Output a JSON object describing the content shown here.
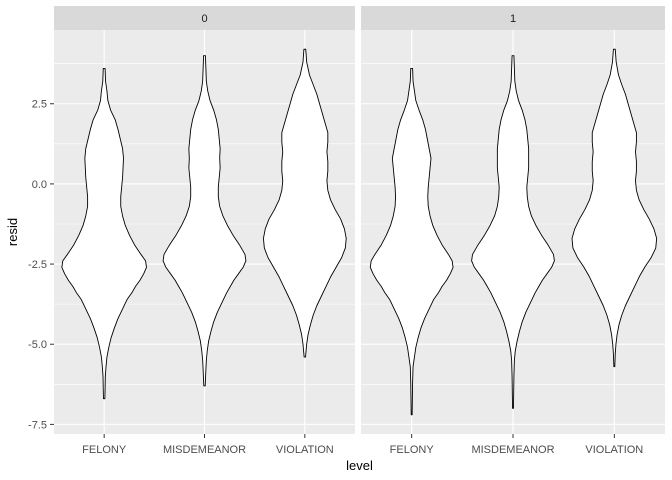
{
  "chart_data": {
    "type": "violin",
    "xlabel": "level",
    "ylabel": "resid",
    "facet_labels": [
      "0",
      "1"
    ],
    "categories": [
      "FELONY",
      "MISDEMEANOR",
      "VIOLATION"
    ],
    "y_ticks": [
      2.5,
      0.0,
      -2.5,
      -5.0,
      -7.5
    ],
    "y_tick_labels": [
      "2.5",
      "0.0",
      "-2.5",
      "-5.0",
      "-7.5"
    ],
    "ylim": [
      -7.8,
      4.8
    ],
    "grid": true,
    "colors": {
      "panel": "#ebebeb",
      "strip": "#d9d9d9",
      "grid": "#ffffff",
      "violin_fill": "#ffffff",
      "violin_line": "#000000"
    },
    "panels": [
      {
        "facet": "0",
        "violins": [
          {
            "category": "FELONY",
            "min": -6.7,
            "max": 3.6,
            "profile": [
              [
                3.6,
                0.02
              ],
              [
                3.2,
                0.03
              ],
              [
                2.9,
                0.06
              ],
              [
                2.6,
                0.08
              ],
              [
                2.3,
                0.14
              ],
              [
                2.0,
                0.24
              ],
              [
                1.7,
                0.3
              ],
              [
                1.4,
                0.35
              ],
              [
                1.1,
                0.4
              ],
              [
                0.8,
                0.42
              ],
              [
                0.5,
                0.41
              ],
              [
                0.2,
                0.4
              ],
              [
                -0.1,
                0.38
              ],
              [
                -0.4,
                0.36
              ],
              [
                -0.7,
                0.36
              ],
              [
                -1.0,
                0.4
              ],
              [
                -1.3,
                0.46
              ],
              [
                -1.6,
                0.55
              ],
              [
                -1.9,
                0.66
              ],
              [
                -2.2,
                0.8
              ],
              [
                -2.4,
                0.9
              ],
              [
                -2.6,
                0.92
              ],
              [
                -2.8,
                0.86
              ],
              [
                -3.0,
                0.78
              ],
              [
                -3.2,
                0.68
              ],
              [
                -3.4,
                0.6
              ],
              [
                -3.6,
                0.5
              ],
              [
                -3.9,
                0.4
              ],
              [
                -4.2,
                0.3
              ],
              [
                -4.5,
                0.22
              ],
              [
                -4.8,
                0.15
              ],
              [
                -5.1,
                0.1
              ],
              [
                -5.4,
                0.06
              ],
              [
                -5.7,
                0.04
              ],
              [
                -6.0,
                0.025
              ],
              [
                -6.4,
                0.02
              ],
              [
                -6.7,
                0.015
              ]
            ]
          },
          {
            "category": "MISDEMEANOR",
            "min": -6.3,
            "max": 4.0,
            "profile": [
              [
                4.0,
                0.02
              ],
              [
                3.6,
                0.03
              ],
              [
                3.2,
                0.04
              ],
              [
                2.9,
                0.07
              ],
              [
                2.6,
                0.12
              ],
              [
                2.3,
                0.2
              ],
              [
                2.0,
                0.26
              ],
              [
                1.7,
                0.3
              ],
              [
                1.4,
                0.32
              ],
              [
                1.1,
                0.34
              ],
              [
                0.8,
                0.33
              ],
              [
                0.5,
                0.34
              ],
              [
                0.2,
                0.32
              ],
              [
                -0.1,
                0.3
              ],
              [
                -0.4,
                0.3
              ],
              [
                -0.7,
                0.33
              ],
              [
                -1.0,
                0.4
              ],
              [
                -1.3,
                0.5
              ],
              [
                -1.6,
                0.62
              ],
              [
                -1.9,
                0.76
              ],
              [
                -2.2,
                0.88
              ],
              [
                -2.4,
                0.9
              ],
              [
                -2.6,
                0.84
              ],
              [
                -2.8,
                0.74
              ],
              [
                -3.0,
                0.64
              ],
              [
                -3.2,
                0.56
              ],
              [
                -3.4,
                0.48
              ],
              [
                -3.7,
                0.38
              ],
              [
                -4.0,
                0.28
              ],
              [
                -4.3,
                0.2
              ],
              [
                -4.6,
                0.14
              ],
              [
                -4.9,
                0.09
              ],
              [
                -5.2,
                0.06
              ],
              [
                -5.5,
                0.04
              ],
              [
                -5.8,
                0.03
              ],
              [
                -6.3,
                0.015
              ]
            ]
          },
          {
            "category": "VIOLATION",
            "min": -5.4,
            "max": 4.2,
            "profile": [
              [
                4.2,
                0.02
              ],
              [
                3.8,
                0.04
              ],
              [
                3.4,
                0.1
              ],
              [
                3.1,
                0.18
              ],
              [
                2.8,
                0.26
              ],
              [
                2.5,
                0.32
              ],
              [
                2.2,
                0.38
              ],
              [
                1.9,
                0.44
              ],
              [
                1.6,
                0.5
              ],
              [
                1.3,
                0.5
              ],
              [
                1.0,
                0.48
              ],
              [
                0.7,
                0.5
              ],
              [
                0.4,
                0.5
              ],
              [
                0.1,
                0.48
              ],
              [
                -0.2,
                0.5
              ],
              [
                -0.5,
                0.56
              ],
              [
                -0.8,
                0.66
              ],
              [
                -1.1,
                0.78
              ],
              [
                -1.4,
                0.86
              ],
              [
                -1.7,
                0.9
              ],
              [
                -2.0,
                0.88
              ],
              [
                -2.3,
                0.8
              ],
              [
                -2.6,
                0.68
              ],
              [
                -2.9,
                0.56
              ],
              [
                -3.2,
                0.46
              ],
              [
                -3.5,
                0.36
              ],
              [
                -3.8,
                0.26
              ],
              [
                -4.1,
                0.18
              ],
              [
                -4.4,
                0.12
              ],
              [
                -4.7,
                0.07
              ],
              [
                -5.0,
                0.04
              ],
              [
                -5.4,
                0.015
              ]
            ]
          }
        ]
      },
      {
        "facet": "1",
        "violins": [
          {
            "category": "FELONY",
            "min": -7.2,
            "max": 3.6,
            "profile": [
              [
                3.6,
                0.02
              ],
              [
                3.2,
                0.03
              ],
              [
                2.9,
                0.06
              ],
              [
                2.6,
                0.09
              ],
              [
                2.3,
                0.16
              ],
              [
                2.0,
                0.24
              ],
              [
                1.7,
                0.3
              ],
              [
                1.4,
                0.34
              ],
              [
                1.1,
                0.38
              ],
              [
                0.8,
                0.42
              ],
              [
                0.5,
                0.4
              ],
              [
                0.2,
                0.38
              ],
              [
                -0.1,
                0.36
              ],
              [
                -0.4,
                0.35
              ],
              [
                -0.7,
                0.36
              ],
              [
                -1.0,
                0.4
              ],
              [
                -1.3,
                0.46
              ],
              [
                -1.6,
                0.55
              ],
              [
                -1.9,
                0.66
              ],
              [
                -2.2,
                0.8
              ],
              [
                -2.4,
                0.88
              ],
              [
                -2.6,
                0.9
              ],
              [
                -2.8,
                0.84
              ],
              [
                -3.0,
                0.76
              ],
              [
                -3.2,
                0.66
              ],
              [
                -3.4,
                0.58
              ],
              [
                -3.6,
                0.48
              ],
              [
                -3.9,
                0.38
              ],
              [
                -4.2,
                0.28
              ],
              [
                -4.5,
                0.2
              ],
              [
                -4.8,
                0.14
              ],
              [
                -5.1,
                0.09
              ],
              [
                -5.4,
                0.06
              ],
              [
                -5.7,
                0.03
              ],
              [
                -6.2,
                0.02
              ],
              [
                -6.7,
                0.015
              ],
              [
                -7.2,
                0.01
              ]
            ]
          },
          {
            "category": "MISDEMEANOR",
            "min": -7.0,
            "max": 4.0,
            "profile": [
              [
                4.0,
                0.02
              ],
              [
                3.6,
                0.03
              ],
              [
                3.2,
                0.04
              ],
              [
                2.9,
                0.07
              ],
              [
                2.6,
                0.12
              ],
              [
                2.3,
                0.2
              ],
              [
                2.0,
                0.26
              ],
              [
                1.7,
                0.3
              ],
              [
                1.4,
                0.32
              ],
              [
                1.1,
                0.34
              ],
              [
                0.8,
                0.34
              ],
              [
                0.5,
                0.34
              ],
              [
                0.2,
                0.32
              ],
              [
                -0.1,
                0.3
              ],
              [
                -0.4,
                0.31
              ],
              [
                -0.7,
                0.34
              ],
              [
                -1.0,
                0.4
              ],
              [
                -1.3,
                0.5
              ],
              [
                -1.6,
                0.62
              ],
              [
                -1.9,
                0.76
              ],
              [
                -2.2,
                0.88
              ],
              [
                -2.4,
                0.9
              ],
              [
                -2.6,
                0.84
              ],
              [
                -2.8,
                0.74
              ],
              [
                -3.0,
                0.64
              ],
              [
                -3.2,
                0.56
              ],
              [
                -3.4,
                0.48
              ],
              [
                -3.7,
                0.38
              ],
              [
                -4.0,
                0.28
              ],
              [
                -4.3,
                0.2
              ],
              [
                -4.6,
                0.14
              ],
              [
                -4.9,
                0.09
              ],
              [
                -5.2,
                0.05
              ],
              [
                -5.5,
                0.03
              ],
              [
                -6.0,
                0.02
              ],
              [
                -6.5,
                0.015
              ],
              [
                -7.0,
                0.01
              ]
            ]
          },
          {
            "category": "VIOLATION",
            "min": -5.7,
            "max": 4.2,
            "profile": [
              [
                4.2,
                0.02
              ],
              [
                3.8,
                0.04
              ],
              [
                3.4,
                0.09
              ],
              [
                3.1,
                0.16
              ],
              [
                2.8,
                0.24
              ],
              [
                2.5,
                0.3
              ],
              [
                2.2,
                0.36
              ],
              [
                1.9,
                0.42
              ],
              [
                1.6,
                0.48
              ],
              [
                1.3,
                0.48
              ],
              [
                1.0,
                0.46
              ],
              [
                0.7,
                0.48
              ],
              [
                0.4,
                0.48
              ],
              [
                0.1,
                0.46
              ],
              [
                -0.2,
                0.48
              ],
              [
                -0.5,
                0.54
              ],
              [
                -0.8,
                0.64
              ],
              [
                -1.1,
                0.76
              ],
              [
                -1.4,
                0.86
              ],
              [
                -1.7,
                0.92
              ],
              [
                -2.0,
                0.9
              ],
              [
                -2.3,
                0.8
              ],
              [
                -2.6,
                0.66
              ],
              [
                -2.9,
                0.54
              ],
              [
                -3.2,
                0.44
              ],
              [
                -3.5,
                0.34
              ],
              [
                -3.8,
                0.24
              ],
              [
                -4.1,
                0.16
              ],
              [
                -4.4,
                0.1
              ],
              [
                -4.7,
                0.06
              ],
              [
                -5.0,
                0.035
              ],
              [
                -5.3,
                0.02
              ],
              [
                -5.7,
                0.01
              ]
            ]
          }
        ]
      }
    ]
  }
}
